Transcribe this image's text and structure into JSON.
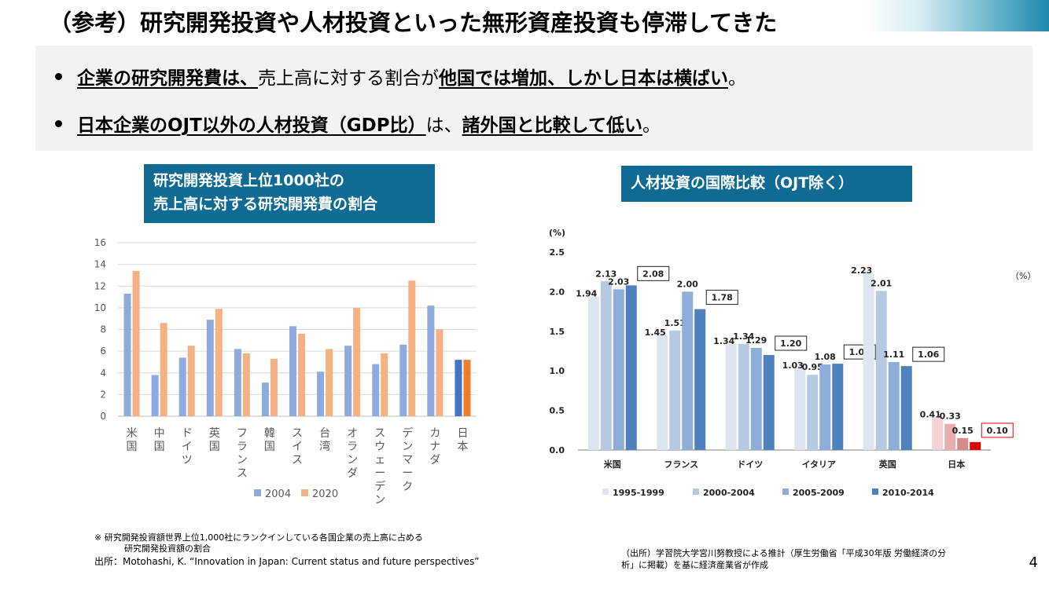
{
  "page": {
    "title": "（参考）研究開発投資や人材投資といった無形資産投資も停滞してきた",
    "page_number": "4"
  },
  "summary": {
    "b1_lead": "企業の研究開発費は、",
    "b1_mid": "売上高に対する割合が",
    "b1_strong": "他国では増加、しかし日本は横ばい",
    "b1_end": "。",
    "b2_lead": "日本企業のOJT以外の人材投資（GDP比）",
    "b2_mid": "は、",
    "b2_strong": "諸外国と比較して低い",
    "b2_end": "。"
  },
  "left_chart_title": {
    "line1": "研究開発投資上位1000社の",
    "line2": "売上高に対する研究開発費の割合"
  },
  "right_chart_title": {
    "line1": "人材投資の国際比較（OJT除く）"
  },
  "notes": {
    "left_note1": "※ 研究開発投資額世界上位1,000社にランクインしている各国企業の売上高に占める",
    "left_note2": "研究開発投資額の割合",
    "left_source": "出所：Motohashi, K. “Innovation in Japan: Current status and future perspectives”",
    "right_source1": "（出所）学習院大学宮川努教授による推計（厚生労働省「平成30年版 労働経済の分",
    "right_source2": "析」に掲載）を基に経済産業省が作成"
  },
  "chart_data": [
    {
      "type": "bar",
      "categories": [
        "米国",
        "中国",
        "ドイツ",
        "英国",
        "フランス",
        "韓国",
        "スイス",
        "台湾",
        "オランダ",
        "スウェーデン",
        "デンマーク",
        "カナダ",
        "日本"
      ],
      "series": [
        {
          "name": "2004",
          "values": [
            11.3,
            3.8,
            5.4,
            8.9,
            6.2,
            3.1,
            8.3,
            4.1,
            6.5,
            4.8,
            6.6,
            10.2,
            5.2
          ]
        },
        {
          "name": "2020",
          "values": [
            13.4,
            8.6,
            6.5,
            9.9,
            5.8,
            5.3,
            7.6,
            6.2,
            10.0,
            5.8,
            12.5,
            8.0,
            5.2
          ]
        }
      ],
      "ylim": [
        0,
        16
      ],
      "yticks": [
        "0",
        "2",
        "4",
        "6",
        "8",
        "10",
        "12",
        "14",
        "16"
      ],
      "grid": true,
      "legend": "bottom",
      "colors": {
        "2004": "#8faadc",
        "2020": "#f4b183",
        "japan_2004": "#4472c4",
        "japan_2020": "#ed7d31"
      }
    },
    {
      "type": "bar",
      "unit_left": "(%)",
      "unit_right": "（%）",
      "categories": [
        "米国",
        "フランス",
        "ドイツ",
        "イタリア",
        "英国",
        "日本"
      ],
      "series": [
        {
          "name": "1995-1999",
          "values": [
            1.94,
            1.45,
            1.34,
            1.03,
            2.23,
            0.41
          ]
        },
        {
          "name": "2000-2004",
          "values": [
            2.13,
            1.51,
            1.34,
            0.95,
            2.01,
            0.33
          ]
        },
        {
          "name": "2005-2009",
          "values": [
            2.03,
            2.0,
            1.29,
            1.08,
            1.11,
            0.15
          ]
        },
        {
          "name": "2010-2014",
          "values": [
            2.08,
            1.78,
            1.2,
            1.09,
            1.06,
            0.1
          ]
        }
      ],
      "data_labels": [
        [
          "1.94",
          "1.45",
          "1.34",
          "1.03",
          "2.23",
          "0.41"
        ],
        [
          "2.13",
          "1.51",
          "1.34",
          "0.95",
          "2.01",
          "0.33"
        ],
        [
          "2.03",
          "2.00",
          "1.29",
          "1.08",
          "1.11",
          "0.15"
        ],
        [
          "2.08",
          "1.78",
          "1.20",
          "1.09",
          "1.06",
          "0.10"
        ]
      ],
      "ylim": [
        0,
        2.5
      ],
      "yticks": [
        "0.0",
        "0.5",
        "1.0",
        "1.5",
        "2.0",
        "2.5"
      ],
      "grid": false,
      "legend": "bottom",
      "colors": [
        "#dde5f0",
        "#b6c9e2",
        "#8caed8",
        "#4f81bd"
      ],
      "japan_colors": [
        "#f6d3d3",
        "#e8aeae",
        "#d88a8a",
        "#e00000"
      ]
    }
  ]
}
